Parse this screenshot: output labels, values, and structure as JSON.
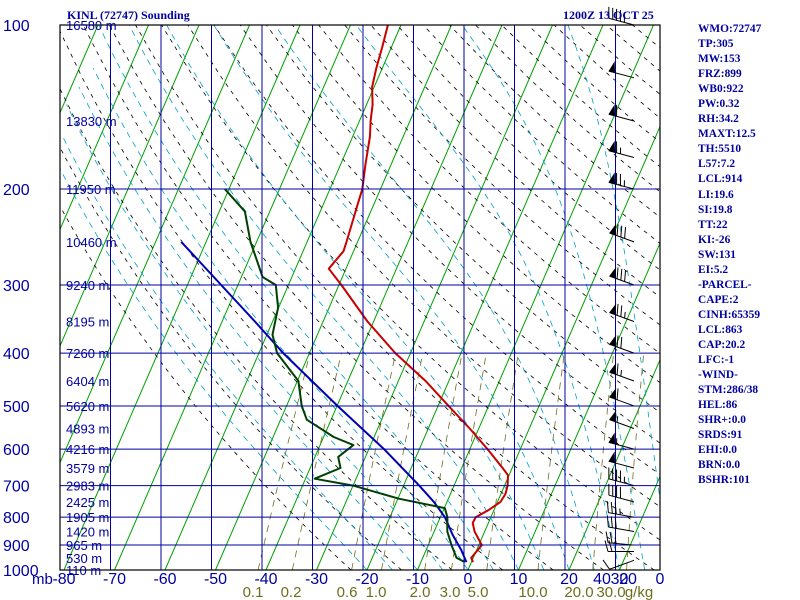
{
  "header": {
    "station": "KINL (72747) Sounding",
    "time": "1200Z 13 OCT 25"
  },
  "indices": [
    "WMO:72747",
    "TP:305",
    "MW:153",
    "FRZ:899",
    "WB0:922",
    "PW:0.32",
    "RH:34.2",
    "MAXT:12.5",
    "TH:5510",
    "L57:7.2",
    "LCL:914",
    "LI:19.6",
    "SI:19.8",
    "TT:22",
    "KI:-26",
    "SW:131",
    "EI:5.2",
    "-PARCEL-",
    "CAPE:2",
    "CINH:65359",
    "LCL:863",
    "CAP:20.2",
    "LFC:-1",
    "-WIND-",
    "STM:286/38",
    "HEL:86",
    "SHR+:0.0",
    "SRDS:91",
    "EHI:0.0",
    "BRN:0.0",
    "BSHR:101"
  ],
  "colors": {
    "frame": "#000000",
    "grid": "#0000a0",
    "isotherm": "#00a000",
    "dry_adiabat": "#000000",
    "moist_adiabat": "#00a0c8",
    "mixing_ratio": "#6e6e1e",
    "temperature": "#c80000",
    "dewpoint": "#004000",
    "parcel": "#0000b4",
    "axis_text": "#0000a0",
    "mixing_text": "#6e6e1e"
  },
  "chart_data": {
    "type": "skew-t log-p sounding",
    "pressure_axis": {
      "label": "mb",
      "ticks": [
        100,
        200,
        300,
        400,
        500,
        600,
        700,
        800,
        900,
        1000
      ]
    },
    "temperature_axis": {
      "ticks": [
        -80,
        -70,
        -60,
        -50,
        -40,
        -30,
        -20,
        -10,
        0,
        10,
        20,
        30,
        40
      ]
    },
    "mixing_ratio_labels": [
      "0.1",
      "0.2",
      "0.6",
      "1.0",
      "2.0",
      "3.0",
      "5.0",
      "10.0",
      "20.0",
      "30.0",
      "g/kg"
    ],
    "wind_speed_axis": {
      "ticks": [
        "0",
        "20",
        "40"
      ]
    },
    "height_labels": [
      {
        "p": 100,
        "h": "16580 m"
      },
      {
        "p": 150,
        "h": "13830 m"
      },
      {
        "p": 200,
        "h": "11950 m"
      },
      {
        "p": 250,
        "h": "10460 m"
      },
      {
        "p": 300,
        "h": "9240 m"
      },
      {
        "p": 350,
        "h": "8195 m"
      },
      {
        "p": 400,
        "h": "7260 m"
      },
      {
        "p": 450,
        "h": "6404 m"
      },
      {
        "p": 500,
        "h": "5620 m"
      },
      {
        "p": 550,
        "h": "4893 m"
      },
      {
        "p": 600,
        "h": "4216 m"
      },
      {
        "p": 650,
        "h": "3579 m"
      },
      {
        "p": 700,
        "h": "2983 m"
      },
      {
        "p": 750,
        "h": "2425 m"
      },
      {
        "p": 800,
        "h": "1905 m"
      },
      {
        "p": 850,
        "h": "1420 m"
      },
      {
        "p": 900,
        "h": "965 m"
      },
      {
        "p": 950,
        "h": "530 m"
      },
      {
        "p": 1000,
        "h": "110 m"
      }
    ],
    "temperature_profile": [
      {
        "p": 967,
        "t": 0.3
      },
      {
        "p": 950,
        "t": -0.4
      },
      {
        "p": 900,
        "t": 0.6
      },
      {
        "p": 850,
        "t": -2.0
      },
      {
        "p": 820,
        "t": -3.1
      },
      {
        "p": 800,
        "t": -3.0
      },
      {
        "p": 775,
        "t": -1.0
      },
      {
        "p": 750,
        "t": 0.6
      },
      {
        "p": 725,
        "t": 0.9
      },
      {
        "p": 700,
        "t": 0.6
      },
      {
        "p": 670,
        "t": -0.2
      },
      {
        "p": 650,
        "t": -1.9
      },
      {
        "p": 600,
        "t": -6.5
      },
      {
        "p": 550,
        "t": -11.8
      },
      {
        "p": 500,
        "t": -17.9
      },
      {
        "p": 450,
        "t": -24.6
      },
      {
        "p": 400,
        "t": -33.0
      },
      {
        "p": 350,
        "t": -41.2
      },
      {
        "p": 300,
        "t": -49.5
      },
      {
        "p": 280,
        "t": -53.4
      },
      {
        "p": 260,
        "t": -52.0
      },
      {
        "p": 250,
        "t": -52.2
      },
      {
        "p": 220,
        "t": -53.0
      },
      {
        "p": 200,
        "t": -53.6
      },
      {
        "p": 180,
        "t": -55.1
      },
      {
        "p": 160,
        "t": -56.6
      },
      {
        "p": 150,
        "t": -57.8
      },
      {
        "p": 140,
        "t": -58.8
      },
      {
        "p": 130,
        "t": -60.4
      },
      {
        "p": 120,
        "t": -61.2
      },
      {
        "p": 110,
        "t": -61.8
      },
      {
        "p": 100,
        "t": -62.6
      }
    ],
    "dewpoint_profile": [
      {
        "p": 967,
        "t": -1.3
      },
      {
        "p": 950,
        "t": -3.3
      },
      {
        "p": 900,
        "t": -5.4
      },
      {
        "p": 850,
        "t": -7.4
      },
      {
        "p": 800,
        "t": -8.6
      },
      {
        "p": 770,
        "t": -9.9
      },
      {
        "p": 740,
        "t": -19.8
      },
      {
        "p": 700,
        "t": -30.0
      },
      {
        "p": 680,
        "t": -38.2
      },
      {
        "p": 650,
        "t": -34.0
      },
      {
        "p": 620,
        "t": -35.4
      },
      {
        "p": 590,
        "t": -33.4
      },
      {
        "p": 570,
        "t": -38.0
      },
      {
        "p": 530,
        "t": -44.8
      },
      {
        "p": 500,
        "t": -47.0
      },
      {
        "p": 450,
        "t": -49.8
      },
      {
        "p": 400,
        "t": -56.4
      },
      {
        "p": 370,
        "t": -58.9
      },
      {
        "p": 330,
        "t": -60.1
      },
      {
        "p": 300,
        "t": -62.5
      },
      {
        "p": 290,
        "t": -65.8
      },
      {
        "p": 250,
        "t": -71.2
      },
      {
        "p": 220,
        "t": -74.9
      },
      {
        "p": 200,
        "t": -80.8
      }
    ],
    "parcel_profile": [
      {
        "p": 967,
        "t": -1.0
      },
      {
        "p": 920,
        "t": -3.0
      },
      {
        "p": 863,
        "t": -6.0
      },
      {
        "p": 800,
        "t": -9.1
      },
      {
        "p": 750,
        "t": -12.6
      },
      {
        "p": 700,
        "t": -16.9
      },
      {
        "p": 600,
        "t": -27.0
      },
      {
        "p": 500,
        "t": -39.9
      },
      {
        "p": 400,
        "t": -55.2
      },
      {
        "p": 350,
        "t": -63.5
      },
      {
        "p": 300,
        "t": -73.3
      },
      {
        "p": 250,
        "t": -84.9
      }
    ],
    "wind_barbs": [
      {
        "p": 960,
        "dir": 250,
        "spd": 10
      },
      {
        "p": 925,
        "dir": 270,
        "spd": 20
      },
      {
        "p": 900,
        "dir": 275,
        "spd": 25
      },
      {
        "p": 850,
        "dir": 280,
        "spd": 30
      },
      {
        "p": 800,
        "dir": 280,
        "spd": 35
      },
      {
        "p": 750,
        "dir": 285,
        "spd": 40
      },
      {
        "p": 700,
        "dir": 285,
        "spd": 45
      },
      {
        "p": 650,
        "dir": 285,
        "spd": 50
      },
      {
        "p": 600,
        "dir": 285,
        "spd": 55
      },
      {
        "p": 550,
        "dir": 290,
        "spd": 55
      },
      {
        "p": 500,
        "dir": 290,
        "spd": 60
      },
      {
        "p": 450,
        "dir": 290,
        "spd": 65
      },
      {
        "p": 400,
        "dir": 290,
        "spd": 70
      },
      {
        "p": 350,
        "dir": 290,
        "spd": 75
      },
      {
        "p": 300,
        "dir": 290,
        "spd": 80
      },
      {
        "p": 250,
        "dir": 290,
        "spd": 80
      },
      {
        "p": 200,
        "dir": 285,
        "spd": 75
      },
      {
        "p": 175,
        "dir": 285,
        "spd": 65
      },
      {
        "p": 150,
        "dir": 285,
        "spd": 60
      },
      {
        "p": 125,
        "dir": 285,
        "spd": 50
      },
      {
        "p": 100,
        "dir": 285,
        "spd": 45
      }
    ],
    "hodograph_scale": [
      0,
      20,
      40
    ]
  }
}
